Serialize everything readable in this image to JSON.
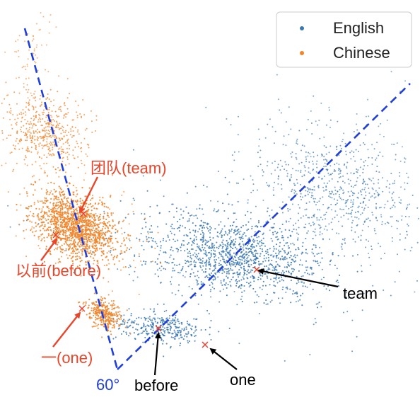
{
  "colors": {
    "english": "#3b78b0",
    "chinese": "#f0862d",
    "marker": "#e3402f",
    "red_text": "#e8462a",
    "axis_line": "#1f3fd8"
  },
  "chart_data": {
    "type": "scatter",
    "legend": {
      "placement": "top-right",
      "entries": [
        "English",
        "Chinese"
      ]
    },
    "series": [
      {
        "name": "English",
        "color": "#3b78b0"
      },
      {
        "name": "Chinese",
        "color": "#f0862d"
      }
    ],
    "angle_label": "60°",
    "annotations": {
      "team_zh": "团队(team)",
      "before_zh": "以前(before)",
      "one_zh": "一(one)",
      "team_en": "team",
      "before_en": "before",
      "one_en": "one"
    }
  }
}
